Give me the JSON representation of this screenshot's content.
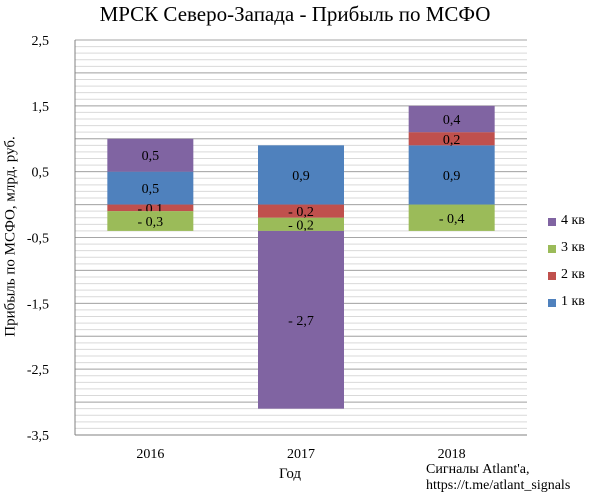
{
  "chart_data": {
    "type": "bar",
    "stacked": true,
    "title": "МРСК Северо-Запада - Прибыль по МСФО",
    "xlabel": "Год",
    "ylabel": "Прибыль по МСФО, млрд. руб.",
    "categories": [
      "2016",
      "2017",
      "2018"
    ],
    "ylim": [
      -3.5,
      2.5
    ],
    "yticks": [
      2.5,
      1.5,
      0.5,
      -0.5,
      -1.5,
      -2.5,
      -3.5
    ],
    "ytick_labels": [
      "2,5",
      "1,5",
      "0,5",
      "-0,5",
      "-1,5",
      "-2,5",
      "-3,5"
    ],
    "grid": true,
    "legend_position": "right",
    "series": [
      {
        "name": "1 кв",
        "color": "#4f81bd",
        "values": [
          0.5,
          0.9,
          0.9
        ],
        "labels": [
          "0,5",
          "0,9",
          "0,9"
        ]
      },
      {
        "name": "2 кв",
        "color": "#c0504d",
        "values": [
          -0.1,
          -0.2,
          0.2
        ],
        "labels": [
          "- 0,1",
          "- 0,2",
          "0,2"
        ]
      },
      {
        "name": "3 кв",
        "color": "#9bbb59",
        "values": [
          -0.3,
          -0.2,
          -0.4
        ],
        "labels": [
          "- 0,3",
          "- 0,2",
          "- 0,4"
        ]
      },
      {
        "name": "4 кв",
        "color": "#8064a2",
        "values": [
          0.5,
          -2.7,
          0.4
        ],
        "labels": [
          "0,5",
          "- 2,7",
          "0,4"
        ]
      }
    ]
  },
  "credit": {
    "line1": "Сигналы Atlant'a,",
    "line2": "https://t.me/atlant_signals"
  }
}
